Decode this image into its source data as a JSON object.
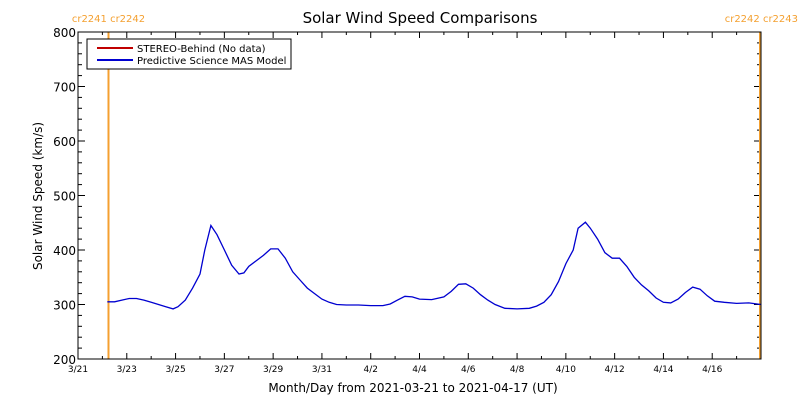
{
  "chart_data": {
    "type": "line",
    "title": "Solar Wind Speed Comparisons",
    "xlabel": "Month/Day from 2021-03-21 to 2021-04-17 (UT)",
    "ylabel": "Solar Wind Speed (km/s)",
    "xlim": [
      0,
      28
    ],
    "ylim": [
      200,
      800
    ],
    "yticks": [
      200,
      300,
      400,
      500,
      600,
      700,
      800
    ],
    "xticks": [
      {
        "day": 0,
        "label": "3/21"
      },
      {
        "day": 2,
        "label": "3/23"
      },
      {
        "day": 4,
        "label": "3/25"
      },
      {
        "day": 6,
        "label": "3/27"
      },
      {
        "day": 8,
        "label": "3/29"
      },
      {
        "day": 10,
        "label": "3/31"
      },
      {
        "day": 12,
        "label": "4/2"
      },
      {
        "day": 14,
        "label": "4/4"
      },
      {
        "day": 16,
        "label": "4/6"
      },
      {
        "day": 18,
        "label": "4/8"
      },
      {
        "day": 20,
        "label": "4/10"
      },
      {
        "day": 22,
        "label": "4/12"
      },
      {
        "day": 24,
        "label": "4/14"
      },
      {
        "day": 26,
        "label": "4/16"
      }
    ],
    "legend": {
      "placement": "top-left",
      "entries": [
        {
          "label": "STEREO-Behind (No data)",
          "color": "#c00000"
        },
        {
          "label": "Predictive Science MAS Model",
          "color": "#0000d0"
        }
      ]
    },
    "carrington_markers": [
      {
        "day": 1.25,
        "labels": [
          "cr2241",
          "cr2242"
        ],
        "color": "#f4a030"
      },
      {
        "day": 28,
        "labels": [
          "cr2242",
          "cr2243"
        ],
        "color": "#f4a030"
      }
    ],
    "series": [
      {
        "name": "Predictive Science MAS Model",
        "color": "#0000d0",
        "points": [
          [
            1.2,
            305
          ],
          [
            1.5,
            305
          ],
          [
            1.8,
            308
          ],
          [
            2.1,
            311
          ],
          [
            2.4,
            311
          ],
          [
            2.7,
            308
          ],
          [
            3.0,
            304
          ],
          [
            3.3,
            300
          ],
          [
            3.6,
            296
          ],
          [
            3.9,
            292
          ],
          [
            4.1,
            296
          ],
          [
            4.4,
            308
          ],
          [
            4.7,
            330
          ],
          [
            5.0,
            356
          ],
          [
            5.2,
            400
          ],
          [
            5.45,
            445
          ],
          [
            5.7,
            428
          ],
          [
            6.0,
            400
          ],
          [
            6.3,
            372
          ],
          [
            6.6,
            356
          ],
          [
            6.8,
            358
          ],
          [
            7.0,
            370
          ],
          [
            7.3,
            380
          ],
          [
            7.6,
            390
          ],
          [
            7.9,
            402
          ],
          [
            8.2,
            402
          ],
          [
            8.5,
            385
          ],
          [
            8.8,
            360
          ],
          [
            9.1,
            345
          ],
          [
            9.4,
            330
          ],
          [
            9.7,
            320
          ],
          [
            10.0,
            310
          ],
          [
            10.3,
            304
          ],
          [
            10.6,
            300
          ],
          [
            11.0,
            299
          ],
          [
            11.5,
            299
          ],
          [
            12.0,
            298
          ],
          [
            12.5,
            298
          ],
          [
            12.8,
            301
          ],
          [
            13.1,
            308
          ],
          [
            13.4,
            315
          ],
          [
            13.7,
            314
          ],
          [
            14.0,
            310
          ],
          [
            14.5,
            309
          ],
          [
            15.0,
            314
          ],
          [
            15.3,
            324
          ],
          [
            15.6,
            337
          ],
          [
            15.9,
            338
          ],
          [
            16.2,
            330
          ],
          [
            16.5,
            318
          ],
          [
            16.8,
            308
          ],
          [
            17.1,
            300
          ],
          [
            17.5,
            293
          ],
          [
            18.0,
            292
          ],
          [
            18.5,
            293
          ],
          [
            18.8,
            297
          ],
          [
            19.1,
            304
          ],
          [
            19.4,
            318
          ],
          [
            19.7,
            342
          ],
          [
            20.0,
            375
          ],
          [
            20.3,
            400
          ],
          [
            20.5,
            440
          ],
          [
            20.8,
            451
          ],
          [
            21.0,
            440
          ],
          [
            21.3,
            420
          ],
          [
            21.6,
            395
          ],
          [
            21.9,
            385
          ],
          [
            22.2,
            385
          ],
          [
            22.5,
            370
          ],
          [
            22.8,
            350
          ],
          [
            23.1,
            336
          ],
          [
            23.4,
            325
          ],
          [
            23.7,
            312
          ],
          [
            24.0,
            304
          ],
          [
            24.3,
            303
          ],
          [
            24.6,
            310
          ],
          [
            24.9,
            322
          ],
          [
            25.2,
            332
          ],
          [
            25.5,
            328
          ],
          [
            25.8,
            316
          ],
          [
            26.1,
            306
          ],
          [
            26.5,
            304
          ],
          [
            27.0,
            302
          ],
          [
            27.5,
            303
          ],
          [
            28.0,
            300
          ]
        ]
      }
    ]
  }
}
